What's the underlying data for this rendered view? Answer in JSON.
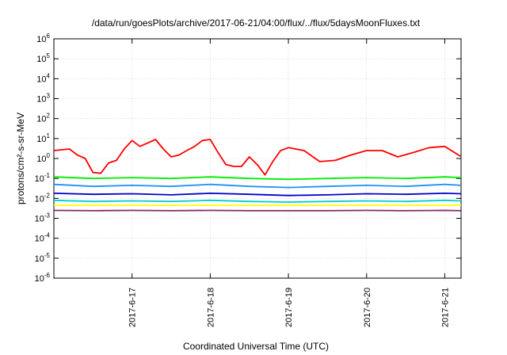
{
  "chart_data": {
    "type": "line",
    "title": "/data/run/goesPlots/archive/2017-06-21/04:00/flux/../flux/5daysMoonFluxes.txt",
    "xlabel": "Coordinated Universal Time (UTC)",
    "ylabel": "protons/cm²-s-sr-MeV",
    "yscale": "log",
    "ylim": [
      1e-06,
      1000000.0
    ],
    "xlim_days": "2017-06-16 to 2017-06-21 05:00",
    "xlim": [
      "2017-06-16T00:00",
      "2017-06-21T05:00"
    ],
    "grid": true,
    "legend": "none",
    "yticks": [
      {
        "base": "10",
        "exp": "6"
      },
      {
        "base": "10",
        "exp": "5"
      },
      {
        "base": "10",
        "exp": "4"
      },
      {
        "base": "10",
        "exp": "3"
      },
      {
        "base": "10",
        "exp": "2"
      },
      {
        "base": "10",
        "exp": "1"
      },
      {
        "base": "10",
        "exp": "0"
      },
      {
        "base": "10",
        "exp": "-1"
      },
      {
        "base": "10",
        "exp": "-2"
      },
      {
        "base": "10",
        "exp": "-3"
      },
      {
        "base": "10",
        "exp": "-4"
      },
      {
        "base": "10",
        "exp": "-5"
      },
      {
        "base": "10",
        "exp": "-6"
      }
    ],
    "xticks": [
      {
        "label": "2017-6-17",
        "t": "2017-06-17T00:00"
      },
      {
        "label": "2017-6-18",
        "t": "2017-06-18T00:00"
      },
      {
        "label": "2017-6-19",
        "t": "2017-06-19T00:00"
      },
      {
        "label": "2017-6-20",
        "t": "2017-06-20T00:00"
      },
      {
        "label": "2017-6-21",
        "t": "2017-06-21T00:00"
      }
    ],
    "series": [
      {
        "color": "#ff0000",
        "t": [
          "2017-06-16T00:00",
          "2017-06-16T04:48",
          "2017-06-16T07:12",
          "2017-06-16T09:36",
          "2017-06-16T12:00",
          "2017-06-16T14:24",
          "2017-06-16T16:48",
          "2017-06-16T19:12",
          "2017-06-16T21:36",
          "2017-06-17T00:00",
          "2017-06-17T02:24",
          "2017-06-17T04:48",
          "2017-06-17T07:12",
          "2017-06-17T09:36",
          "2017-06-17T12:00",
          "2017-06-17T14:24",
          "2017-06-17T16:48",
          "2017-06-17T19:12",
          "2017-06-17T21:36",
          "2017-06-18T00:00",
          "2017-06-18T02:24",
          "2017-06-18T04:48",
          "2017-06-18T07:12",
          "2017-06-18T09:36",
          "2017-06-18T12:00",
          "2017-06-18T14:24",
          "2017-06-18T16:48",
          "2017-06-18T19:12",
          "2017-06-18T21:36",
          "2017-06-19T00:00",
          "2017-06-19T04:48",
          "2017-06-19T09:36",
          "2017-06-19T14:24",
          "2017-06-19T19:12",
          "2017-06-20T00:00",
          "2017-06-20T04:48",
          "2017-06-20T09:36",
          "2017-06-20T14:24",
          "2017-06-20T19:12",
          "2017-06-21T00:00",
          "2017-06-21T04:48"
        ],
        "values": [
          2.5,
          3,
          1.5,
          1,
          0.2,
          0.18,
          0.6,
          0.8,
          3,
          8,
          4,
          6,
          9,
          3,
          1.2,
          1.5,
          2.5,
          4,
          8,
          9,
          2,
          0.5,
          0.4,
          0.4,
          1.2,
          0.5,
          0.15,
          0.7,
          2.5,
          3.5,
          2.5,
          0.7,
          0.8,
          1.5,
          2.5,
          2.5,
          1.2,
          2,
          3.5,
          4,
          1.3
        ]
      },
      {
        "color": "#00ee00",
        "t": [
          "2017-06-16T00:00",
          "2017-06-16T12:00",
          "2017-06-17T00:00",
          "2017-06-17T12:00",
          "2017-06-18T00:00",
          "2017-06-18T12:00",
          "2017-06-19T00:00",
          "2017-06-19T12:00",
          "2017-06-20T00:00",
          "2017-06-20T12:00",
          "2017-06-21T00:00",
          "2017-06-21T05:00"
        ],
        "values": [
          0.12,
          0.1,
          0.11,
          0.1,
          0.12,
          0.1,
          0.09,
          0.1,
          0.11,
          0.1,
          0.12,
          0.11
        ]
      },
      {
        "color": "#1e90ff",
        "t": [
          "2017-06-16T00:00",
          "2017-06-16T12:00",
          "2017-06-17T00:00",
          "2017-06-17T12:00",
          "2017-06-18T00:00",
          "2017-06-18T12:00",
          "2017-06-19T00:00",
          "2017-06-19T12:00",
          "2017-06-20T00:00",
          "2017-06-20T12:00",
          "2017-06-21T00:00",
          "2017-06-21T05:00"
        ],
        "values": [
          0.05,
          0.04,
          0.045,
          0.04,
          0.05,
          0.04,
          0.035,
          0.04,
          0.045,
          0.04,
          0.05,
          0.045
        ]
      },
      {
        "color": "#0000cd",
        "t": [
          "2017-06-16T00:00",
          "2017-06-16T12:00",
          "2017-06-17T00:00",
          "2017-06-17T12:00",
          "2017-06-18T00:00",
          "2017-06-18T12:00",
          "2017-06-19T00:00",
          "2017-06-19T12:00",
          "2017-06-20T00:00",
          "2017-06-20T12:00",
          "2017-06-21T00:00",
          "2017-06-21T05:00"
        ],
        "values": [
          0.018,
          0.016,
          0.017,
          0.015,
          0.018,
          0.016,
          0.014,
          0.015,
          0.017,
          0.016,
          0.018,
          0.017
        ]
      },
      {
        "color": "#00ced1",
        "t": [
          "2017-06-16T00:00",
          "2017-06-16T12:00",
          "2017-06-17T00:00",
          "2017-06-17T12:00",
          "2017-06-18T00:00",
          "2017-06-18T12:00",
          "2017-06-19T00:00",
          "2017-06-19T12:00",
          "2017-06-20T00:00",
          "2017-06-20T12:00",
          "2017-06-21T00:00",
          "2017-06-21T05:00"
        ],
        "values": [
          0.008,
          0.007,
          0.0075,
          0.007,
          0.008,
          0.007,
          0.0065,
          0.007,
          0.0075,
          0.007,
          0.008,
          0.0075
        ]
      },
      {
        "color": "#ffff00",
        "t": [
          "2017-06-16T00:00",
          "2017-06-16T12:00",
          "2017-06-17T00:00",
          "2017-06-17T12:00",
          "2017-06-18T00:00",
          "2017-06-18T12:00",
          "2017-06-19T00:00",
          "2017-06-19T12:00",
          "2017-06-20T00:00",
          "2017-06-20T12:00",
          "2017-06-21T00:00",
          "2017-06-21T05:00"
        ],
        "values": [
          0.0045,
          0.0045,
          0.0045,
          0.0045,
          0.0045,
          0.0045,
          0.0045,
          0.0045,
          0.0045,
          0.0045,
          0.0045,
          0.0045
        ]
      },
      {
        "color": "#8b2c6e",
        "t": [
          "2017-06-16T00:00",
          "2017-06-16T12:00",
          "2017-06-17T00:00",
          "2017-06-17T12:00",
          "2017-06-18T00:00",
          "2017-06-18T12:00",
          "2017-06-19T00:00",
          "2017-06-19T12:00",
          "2017-06-20T00:00",
          "2017-06-20T12:00",
          "2017-06-21T00:00",
          "2017-06-21T05:00"
        ],
        "values": [
          0.0025,
          0.0024,
          0.0025,
          0.0024,
          0.0025,
          0.0024,
          0.0024,
          0.0024,
          0.0025,
          0.0024,
          0.0025,
          0.0024
        ]
      }
    ]
  }
}
